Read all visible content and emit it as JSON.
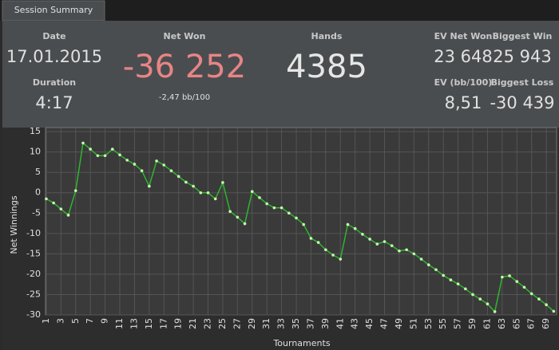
{
  "tab": "Session Summary",
  "summary": {
    "date_label": "Date",
    "date": "17.01.2015",
    "duration_label": "Duration",
    "duration": "4:17",
    "net_won_label": "Net Won",
    "net_won": "-36 252",
    "net_won_rate": "-2,47 bb/100",
    "hands_label": "Hands",
    "hands": "4385",
    "ev_net_won_label": "EV Net Won",
    "ev_net_won": "23 648",
    "biggest_win_label": "Biggest Win",
    "biggest_win": "25 943",
    "ev_rate_label": "EV (bb/100)",
    "ev_rate": "8,51",
    "biggest_loss_label": "Biggest Loss",
    "biggest_loss": "-30 439"
  },
  "chart_data": {
    "type": "line",
    "x_label": "Tournaments",
    "y_label": "Net Winnings",
    "x": [
      1,
      2,
      3,
      4,
      5,
      6,
      7,
      8,
      9,
      10,
      11,
      12,
      13,
      14,
      15,
      16,
      17,
      18,
      19,
      20,
      21,
      22,
      23,
      24,
      25,
      26,
      27,
      28,
      29,
      30,
      31,
      32,
      33,
      34,
      35,
      36,
      37,
      38,
      39,
      40,
      41,
      42,
      43,
      44,
      45,
      46,
      47,
      48,
      49,
      50,
      51,
      52,
      53,
      54,
      55,
      56,
      57,
      58,
      59,
      60,
      61,
      62,
      63,
      64,
      65,
      66,
      67,
      68,
      69,
      70
    ],
    "values": [
      -1.5,
      -2.5,
      -4,
      -5.5,
      0.5,
      12.2,
      10.7,
      9.1,
      9.1,
      10.7,
      9.3,
      8,
      7,
      5.4,
      1.6,
      7.8,
      6.8,
      5.4,
      4,
      2.6,
      1.6,
      0,
      0,
      -1.5,
      2.5,
      -4.6,
      -6,
      -7.6,
      0.3,
      -1.2,
      -2.7,
      -3.7,
      -3.7,
      -5,
      -6.2,
      -7.8,
      -11.2,
      -12.2,
      -14,
      -15.3,
      -16.3,
      -7.8,
      -8.8,
      -10.2,
      -11.4,
      -12.6,
      -12,
      -13,
      -14.3,
      -14,
      -15,
      -16.3,
      -17.7,
      -18.9,
      -20.3,
      -21.4,
      -22.4,
      -23.6,
      -25,
      -26.1,
      -27.3,
      -29.2,
      -20.7,
      -20.4,
      -21.8,
      -23.2,
      -24.8,
      -26.1,
      -27.5,
      -29.1
    ],
    "color": "#2fb52f",
    "marker_color": "#c8f5b0",
    "xlim": [
      0.9,
      70.4
    ],
    "ylim": [
      -30,
      16
    ],
    "xticks": [
      1,
      3,
      5,
      7,
      9,
      11,
      13,
      15,
      17,
      19,
      21,
      23,
      25,
      27,
      29,
      31,
      33,
      35,
      37,
      39,
      41,
      43,
      45,
      47,
      49,
      51,
      53,
      55,
      57,
      59,
      61,
      63,
      65,
      67,
      69
    ],
    "yticks": [
      -30,
      -25,
      -20,
      -15,
      -10,
      -5,
      0,
      5,
      10,
      15
    ],
    "grid": true
  }
}
